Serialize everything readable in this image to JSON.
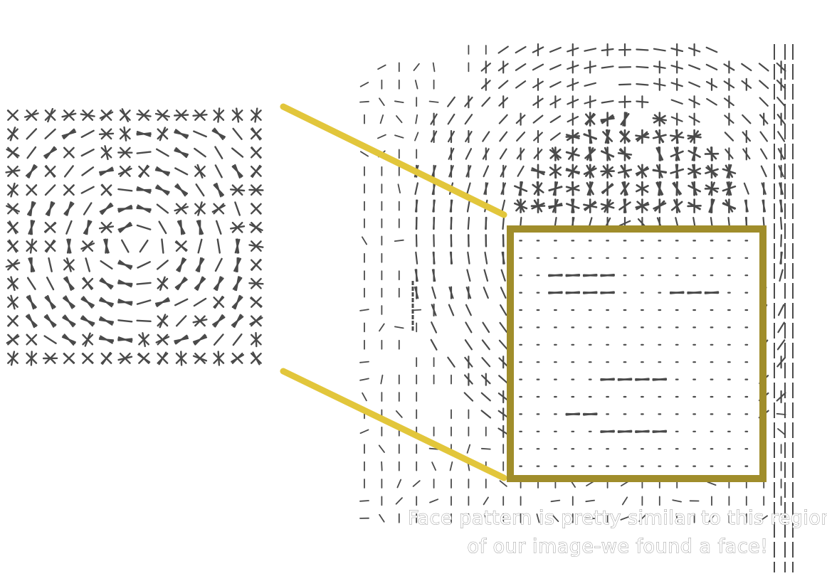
{
  "figure": {
    "colors": {
      "background": "#ffffff",
      "hog_glyph": "#4a4a4a",
      "connector": "#e2c63b",
      "detection_box": "#a08d2b",
      "caption_outline": "#9a9a9a"
    },
    "template": {
      "name": "face-hog-template",
      "grid_cols": 14,
      "grid_rows": 14
    },
    "scene": {
      "name": "image-hog-field",
      "grid_cols": 25,
      "grid_rows": 28
    },
    "caption": {
      "line1": "Face pattern is pretty similar to this region",
      "line2": "of our image-we found a face!"
    }
  }
}
